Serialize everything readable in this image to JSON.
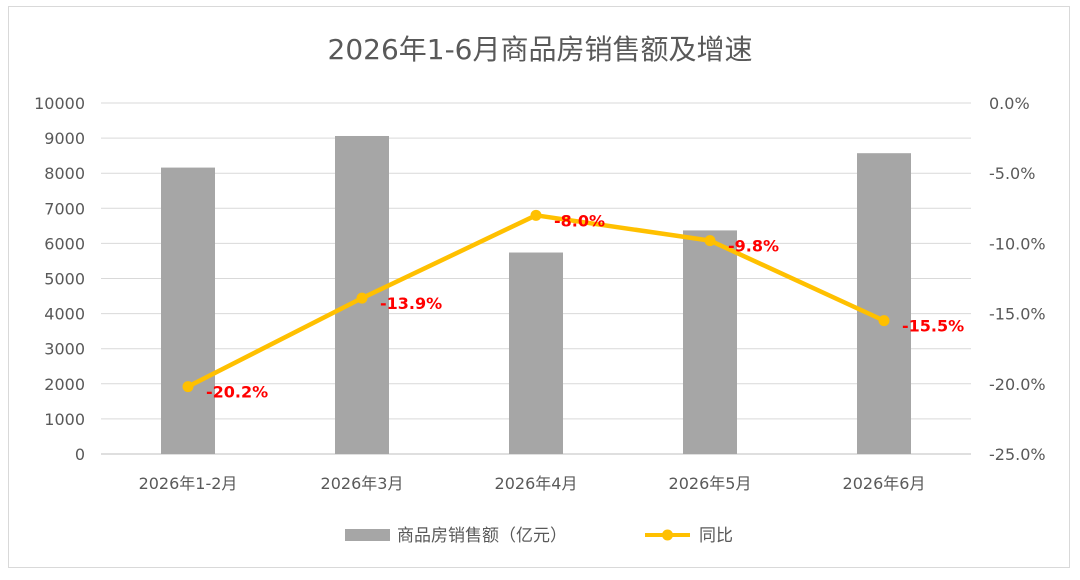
{
  "chart_data": {
    "type": "bar",
    "title": "2026年1-6月商品房销售额及增速",
    "categories": [
      "2026年1-2月",
      "2026年3月",
      "2026年4月",
      "2026年5月",
      "2026年6月"
    ],
    "series": [
      {
        "name": "商品房销售额（亿元）",
        "type": "bar",
        "axis": "left",
        "color": "#a6a6a6",
        "values": [
          8160,
          9060,
          5740,
          6370,
          8570
        ]
      },
      {
        "name": "同比",
        "type": "line",
        "axis": "right",
        "color": "#ffc000",
        "values": [
          -20.2,
          -13.9,
          -8.0,
          -9.8,
          -15.5
        ],
        "labels": [
          "-20.2%",
          "-13.9%",
          "-8.0%",
          "-9.8%",
          "-15.5%"
        ]
      }
    ],
    "y_left": {
      "ylim": [
        0,
        10000
      ],
      "ticks": [
        "0",
        "1000",
        "2000",
        "3000",
        "4000",
        "5000",
        "6000",
        "7000",
        "8000",
        "9000",
        "10000"
      ]
    },
    "y_right": {
      "ylim": [
        -25,
        0
      ],
      "ticks": [
        "-25.0%",
        "-20.0%",
        "-15.0%",
        "-10.0%",
        "-5.0%",
        "0.0%"
      ]
    },
    "grid": true,
    "legend": "bottom"
  }
}
